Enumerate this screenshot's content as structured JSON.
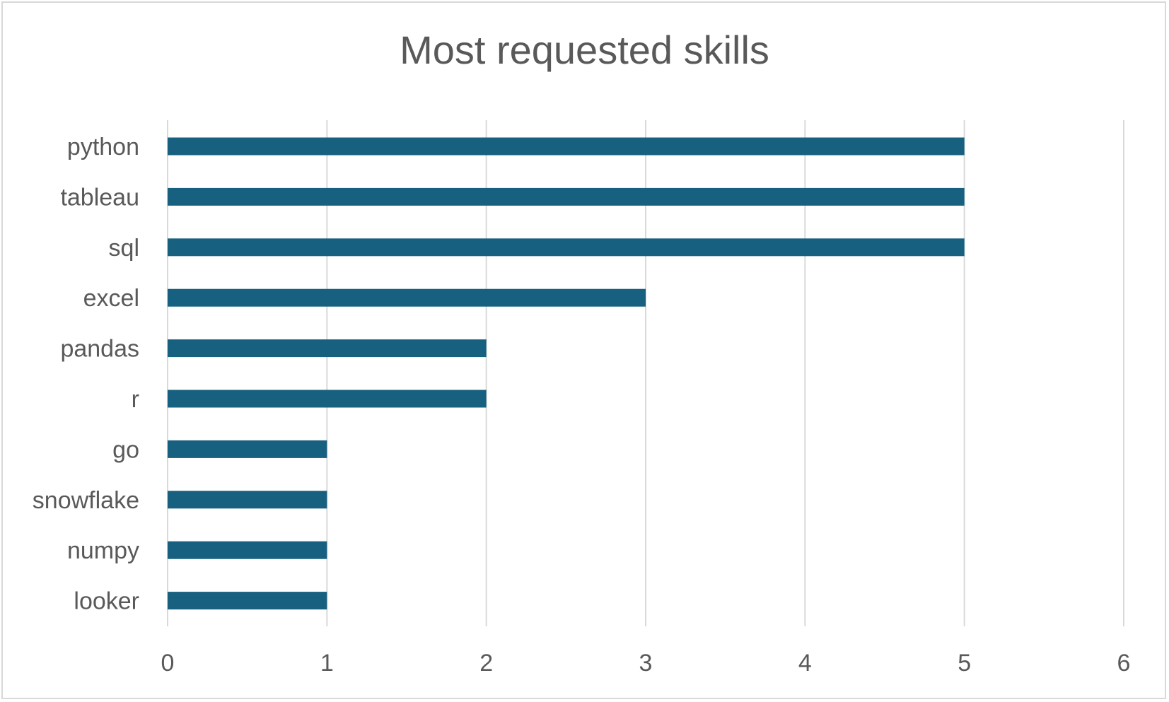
{
  "chart_data": {
    "type": "bar",
    "orientation": "horizontal",
    "title": "Most requested skills",
    "categories": [
      "python",
      "tableau",
      "sql",
      "excel",
      "pandas",
      "r",
      "go",
      "snowflake",
      "numpy",
      "looker"
    ],
    "values": [
      5,
      5,
      5,
      3,
      2,
      2,
      1,
      1,
      1,
      1
    ],
    "xlim": [
      0,
      6
    ],
    "xticks": [
      "0",
      "1",
      "2",
      "3",
      "4",
      "5",
      "6"
    ],
    "xlabel": "",
    "ylabel": "",
    "grid": "vertical",
    "legend": "none",
    "bar_color": "#17607f",
    "grid_color": "#d9d9d9",
    "text_color": "#595959"
  }
}
